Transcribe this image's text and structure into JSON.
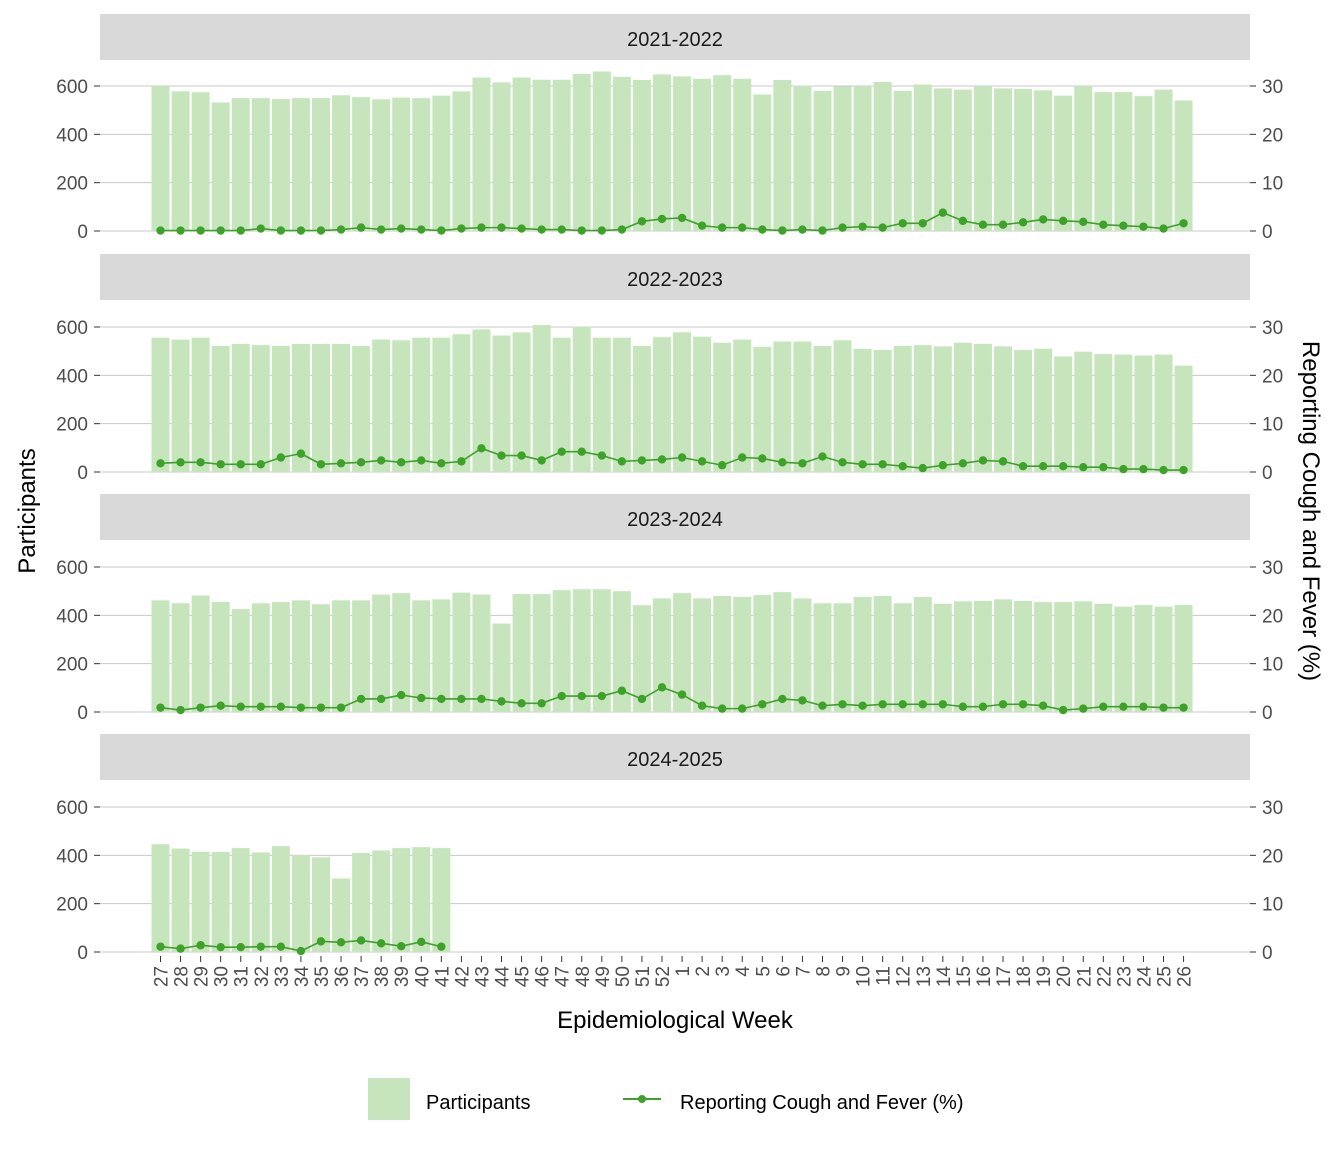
{
  "colors": {
    "bar": "#c7e5bd",
    "line": "#3ea12a",
    "strip": "#d9d9d9",
    "grid": "#c8c8c8"
  },
  "chart_data": {
    "type": "bar+line",
    "facets": [
      "2021-2022",
      "2022-2023",
      "2023-2024",
      "2024-2025"
    ],
    "categories": [
      "27",
      "28",
      "29",
      "30",
      "31",
      "32",
      "33",
      "34",
      "35",
      "36",
      "37",
      "38",
      "39",
      "40",
      "41",
      "42",
      "43",
      "44",
      "45",
      "46",
      "47",
      "48",
      "49",
      "50",
      "51",
      "52",
      "1",
      "2",
      "3",
      "4",
      "5",
      "6",
      "7",
      "8",
      "9",
      "10",
      "11",
      "12",
      "13",
      "14",
      "15",
      "16",
      "17",
      "18",
      "19",
      "20",
      "21",
      "22",
      "23",
      "24",
      "25",
      "26"
    ],
    "xlabel": "Epidemiological Week",
    "ylabel": "Participants",
    "ylabel_right": "Reporting Cough and Fever (%)",
    "ylim": [
      0,
      600
    ],
    "yticks": [
      0,
      200,
      400,
      600
    ],
    "ylim_right": [
      0,
      30
    ],
    "yticks_right": [
      0,
      10,
      20,
      30
    ],
    "legend": {
      "position": "bottom",
      "bar_label": "Participants",
      "line_label": "Reporting Cough and Fever (%)"
    },
    "series": [
      {
        "season": "2021-2022",
        "participants": [
          600,
          578,
          574,
          532,
          550,
          550,
          546,
          550,
          550,
          562,
          554,
          545,
          552,
          550,
          560,
          578,
          635,
          615,
          635,
          626,
          626,
          650,
          660,
          638,
          625,
          648,
          640,
          630,
          645,
          630,
          565,
          625,
          602,
          580,
          598,
          600,
          617,
          580,
          606,
          590,
          585,
          600,
          590,
          588,
          582,
          560,
          600,
          575,
          575,
          558,
          585,
          540
        ],
        "cough_fever_pct": [
          0.1,
          0.1,
          0.1,
          0.1,
          0.1,
          0.5,
          0.1,
          0.1,
          0.1,
          0.3,
          0.7,
          0.3,
          0.5,
          0.3,
          0.1,
          0.5,
          0.7,
          0.7,
          0.5,
          0.3,
          0.3,
          0.1,
          0.1,
          0.3,
          2.0,
          2.5,
          2.7,
          1.1,
          0.7,
          0.7,
          0.3,
          0.1,
          0.3,
          0.1,
          0.7,
          0.9,
          0.7,
          1.6,
          1.6,
          3.8,
          2.1,
          1.3,
          1.3,
          1.8,
          2.4,
          2.1,
          1.9,
          1.3,
          1.1,
          0.9,
          0.5,
          1.6
        ]
      },
      {
        "season": "2022-2023",
        "participants": [
          556,
          548,
          556,
          522,
          530,
          525,
          522,
          530,
          530,
          530,
          522,
          548,
          545,
          556,
          556,
          570,
          590,
          565,
          578,
          608,
          556,
          602,
          556,
          556,
          522,
          558,
          578,
          560,
          535,
          548,
          518,
          540,
          540,
          522,
          545,
          510,
          505,
          522,
          525,
          520,
          535,
          530,
          520,
          505,
          510,
          478,
          498,
          488,
          486,
          482,
          486,
          440
        ],
        "cough_fever_pct": [
          1.8,
          2.0,
          2.0,
          1.6,
          1.6,
          1.6,
          3.0,
          3.8,
          1.6,
          1.8,
          2.0,
          2.4,
          2.0,
          2.4,
          1.8,
          2.2,
          4.9,
          3.4,
          3.4,
          2.4,
          4.2,
          4.2,
          3.4,
          2.2,
          2.4,
          2.6,
          3.0,
          2.2,
          1.4,
          3.0,
          2.8,
          2.0,
          1.8,
          3.2,
          2.0,
          1.6,
          1.6,
          1.2,
          0.8,
          1.4,
          1.8,
          2.4,
          2.2,
          1.2,
          1.2,
          1.2,
          1.0,
          1.0,
          0.6,
          0.6,
          0.4,
          0.4
        ]
      },
      {
        "season": "2023-2024",
        "participants": [
          462,
          450,
          482,
          456,
          426,
          450,
          455,
          462,
          446,
          462,
          462,
          486,
          492,
          462,
          466,
          494,
          486,
          366,
          488,
          488,
          504,
          508,
          508,
          500,
          442,
          470,
          492,
          470,
          480,
          476,
          484,
          496,
          470,
          450,
          450,
          476,
          480,
          450,
          476,
          448,
          458,
          460,
          466,
          460,
          455,
          455,
          458,
          448,
          436,
          443,
          436,
          443
        ],
        "cough_fever_pct": [
          0.9,
          0.4,
          0.9,
          1.3,
          1.1,
          1.1,
          1.1,
          0.9,
          0.9,
          0.9,
          2.7,
          2.7,
          3.5,
          2.9,
          2.7,
          2.7,
          2.7,
          2.2,
          1.8,
          1.8,
          3.3,
          3.3,
          3.3,
          4.4,
          2.7,
          5.1,
          3.6,
          1.3,
          0.7,
          0.7,
          1.6,
          2.7,
          2.4,
          1.3,
          1.6,
          1.3,
          1.6,
          1.6,
          1.6,
          1.6,
          1.1,
          1.1,
          1.6,
          1.6,
          1.3,
          0.4,
          0.7,
          1.1,
          1.1,
          1.1,
          0.9,
          0.9
        ]
      },
      {
        "season": "2024-2025",
        "participants": [
          446,
          428,
          415,
          414,
          430,
          412,
          438,
          402,
          392,
          304,
          410,
          420,
          430,
          434,
          430
        ],
        "cough_fever_pct": [
          1.1,
          0.7,
          1.4,
          1.0,
          1.0,
          1.1,
          1.1,
          0.2,
          2.2,
          2.0,
          2.4,
          1.8,
          1.2,
          2.1,
          1.1
        ]
      }
    ]
  }
}
